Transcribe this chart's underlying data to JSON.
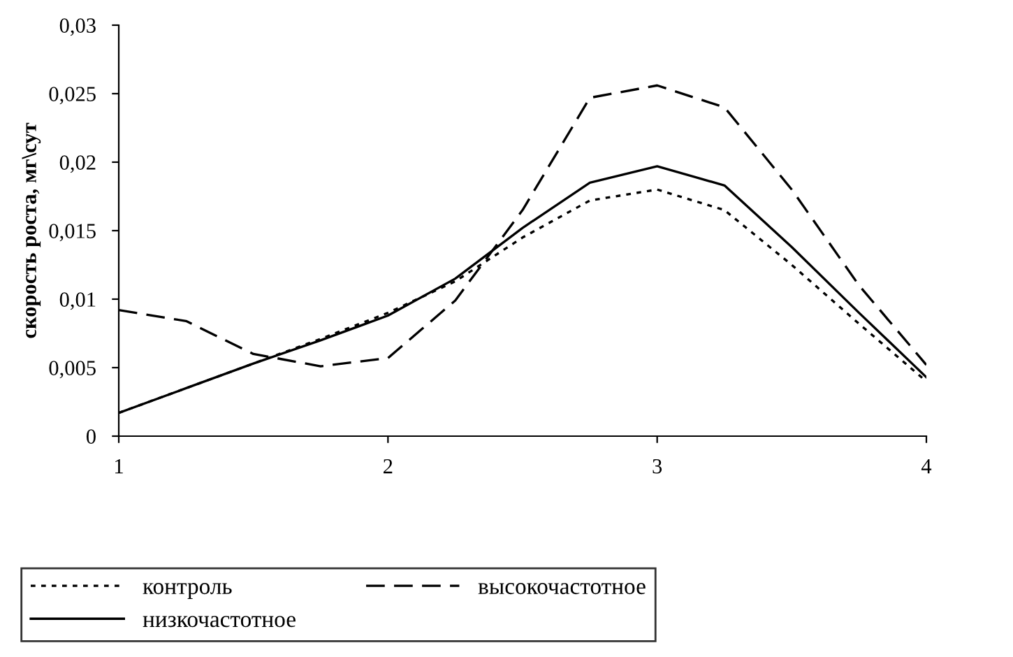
{
  "chart_data": {
    "type": "line",
    "ylabel": "скорость роста, мг\\сут",
    "x": [
      1,
      1.25,
      1.5,
      1.75,
      2,
      2.25,
      2.5,
      2.75,
      3,
      3.25,
      3.5,
      3.75,
      4
    ],
    "xlim": [
      1,
      4
    ],
    "xticks": [
      1,
      2,
      3,
      4
    ],
    "ylim": [
      0,
      0.03
    ],
    "yticks": [
      {
        "value": 0,
        "label": "0"
      },
      {
        "value": 0.005,
        "label": "0,005"
      },
      {
        "value": 0.01,
        "label": "0,01"
      },
      {
        "value": 0.015,
        "label": "0,015"
      },
      {
        "value": 0.02,
        "label": "0,02"
      },
      {
        "value": 0.025,
        "label": "0,025"
      },
      {
        "value": 0.03,
        "label": "0,03"
      }
    ],
    "grid": false,
    "legend": "bottom",
    "marker": "none",
    "series": [
      {
        "name": "контроль",
        "color": "#000000",
        "line_style": "dotted",
        "values": [
          0.0017,
          0.0035,
          0.0053,
          0.0071,
          0.009,
          0.0113,
          0.0145,
          0.0172,
          0.018,
          0.0165,
          0.0125,
          0.0082,
          0.004
        ]
      },
      {
        "name": "низкочастотное",
        "color": "#000000",
        "line_style": "solid",
        "values": [
          0.0017,
          0.0035,
          0.0053,
          0.007,
          0.0088,
          0.0115,
          0.0152,
          0.0185,
          0.0197,
          0.0183,
          0.0138,
          0.009,
          0.0043
        ]
      },
      {
        "name": "высокочастотное",
        "color": "#000000",
        "line_style": "dashed",
        "values": [
          0.0092,
          0.0084,
          0.006,
          0.0051,
          0.0057,
          0.0099,
          0.0165,
          0.0247,
          0.0256,
          0.024,
          0.018,
          0.011,
          0.0052
        ]
      }
    ]
  }
}
